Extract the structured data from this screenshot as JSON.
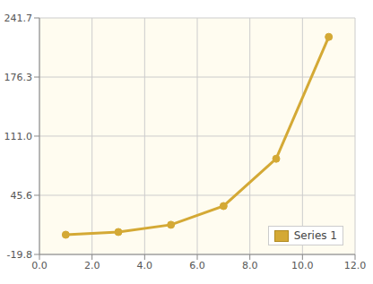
{
  "chart_data": {
    "type": "line",
    "x": [
      1,
      3,
      5,
      7,
      9,
      11
    ],
    "series": [
      {
        "name": "Series 1",
        "color": "#d4a935",
        "values": [
          2.0,
          5.0,
          13.0,
          33.7,
          86.0,
          220.7
        ]
      }
    ],
    "xlim": [
      0,
      12
    ],
    "xticks": [
      {
        "value": 0,
        "label": "0.0"
      },
      {
        "value": 2,
        "label": "2.0"
      },
      {
        "value": 4,
        "label": "4.0"
      },
      {
        "value": 6,
        "label": "6.0"
      },
      {
        "value": 8,
        "label": "8.0"
      },
      {
        "value": 10,
        "label": "10.0"
      },
      {
        "value": 12,
        "label": "12.0"
      }
    ],
    "ylim": [
      -19.8,
      241.7
    ],
    "yticks": [
      -19.8,
      45.6,
      {
        "value": 111,
        "label": "111.0"
      },
      176.3,
      241.7
    ],
    "grid": true,
    "legend": "lower right",
    "marker": "circle"
  }
}
